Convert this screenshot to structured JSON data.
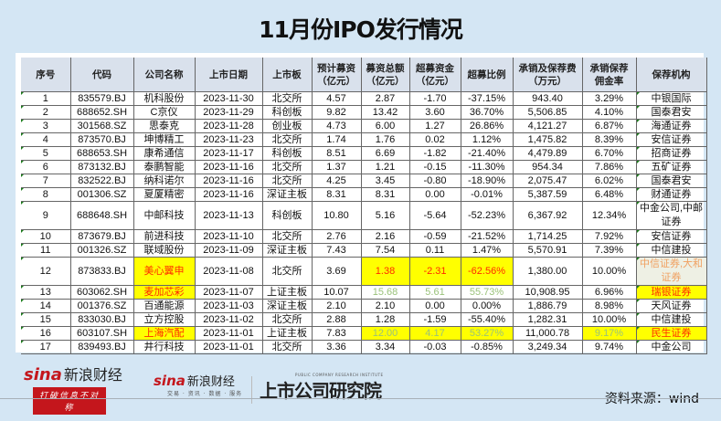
{
  "title": "11月份IPO发行情况",
  "table": {
    "headers": [
      "序号",
      "代码",
      "公司名称",
      "上市日期",
      "上市板",
      "预计募资（亿元）",
      "募资总额（亿元）",
      "超募资金（亿元）",
      "超募比例",
      "承销及保荐费（万元）",
      "承销保荐佣金率",
      "保荐机构"
    ],
    "header_lines": [
      [
        "序号"
      ],
      [
        "代码"
      ],
      [
        "公司名称"
      ],
      [
        "上市日期"
      ],
      [
        "上市板"
      ],
      [
        "预计募资",
        "（亿元）"
      ],
      [
        "募资总额",
        "（亿元）"
      ],
      [
        "超募资金",
        "（亿元）"
      ],
      [
        "超募比例"
      ],
      [
        "承销及保荐费",
        "（万元）"
      ],
      [
        "承销保荐",
        "佣金率"
      ],
      [
        "保荐机构"
      ]
    ],
    "rows": [
      [
        "1",
        "835579.BJ",
        "机科股份",
        "2023-11-30",
        "北交所",
        "4.57",
        "2.87",
        "-1.70",
        "-37.15%",
        "943.40",
        "3.29%",
        "中银国际"
      ],
      [
        "2",
        "688652.SH",
        "C京仪",
        "2023-11-29",
        "科创板",
        "9.82",
        "13.42",
        "3.60",
        "36.70%",
        "5,506.85",
        "4.10%",
        "国泰君安"
      ],
      [
        "3",
        "301568.SZ",
        "思泰克",
        "2023-11-28",
        "创业板",
        "4.73",
        "6.00",
        "1.27",
        "26.86%",
        "4,121.27",
        "6.87%",
        "海通证券"
      ],
      [
        "4",
        "873570.BJ",
        "坤博精工",
        "2023-11-23",
        "北交所",
        "1.74",
        "1.76",
        "0.02",
        "1.12%",
        "1,475.82",
        "8.39%",
        "安信证券"
      ],
      [
        "5",
        "688653.SH",
        "康希通信",
        "2023-11-17",
        "科创板",
        "8.51",
        "6.69",
        "-1.82",
        "-21.40%",
        "4,479.89",
        "6.70%",
        "招商证券"
      ],
      [
        "6",
        "873132.BJ",
        "泰鹏智能",
        "2023-11-16",
        "北交所",
        "1.37",
        "1.21",
        "-0.15",
        "-11.30%",
        "954.34",
        "7.86%",
        "五矿证券"
      ],
      [
        "7",
        "832522.BJ",
        "纳科诺尔",
        "2023-11-16",
        "北交所",
        "4.25",
        "3.45",
        "-0.80",
        "-18.90%",
        "2,075.47",
        "6.02%",
        "国泰君安"
      ],
      [
        "8",
        "001306.SZ",
        "夏厦精密",
        "2023-11-16",
        "深证主板",
        "8.31",
        "8.31",
        "0.00",
        "-0.01%",
        "5,387.59",
        "6.48%",
        "财通证券"
      ],
      [
        "9",
        "688648.SH",
        "中邮科技",
        "2023-11-13",
        "科创板",
        "10.80",
        "5.16",
        "-5.64",
        "-52.23%",
        "6,367.92",
        "12.34%",
        "中金公司,中邮证券"
      ],
      [
        "10",
        "873679.BJ",
        "前进科技",
        "2023-11-10",
        "北交所",
        "2.76",
        "2.16",
        "-0.59",
        "-21.52%",
        "1,714.25",
        "7.92%",
        "安信证券"
      ],
      [
        "11",
        "001326.SZ",
        "联域股份",
        "2023-11-09",
        "深证主板",
        "7.43",
        "7.54",
        "0.11",
        "1.47%",
        "5,570.91",
        "7.39%",
        "中信建投"
      ],
      [
        "12",
        "873833.BJ",
        "美心翼申",
        "2023-11-08",
        "北交所",
        "3.69",
        "1.38",
        "-2.31",
        "-62.56%",
        "1,380.00",
        "10.00%",
        "中信证券,大和证券"
      ],
      [
        "13",
        "603062.SH",
        "麦加芯彩",
        "2023-11-07",
        "上证主板",
        "10.07",
        "15.68",
        "5.61",
        "55.73%",
        "10,908.95",
        "6.96%",
        "瑞银证券"
      ],
      [
        "14",
        "001376.SZ",
        "百通能源",
        "2023-11-03",
        "深证主板",
        "2.10",
        "2.10",
        "0.00",
        "0.00%",
        "1,886.79",
        "8.98%",
        "天风证券"
      ],
      [
        "15",
        "833030.BJ",
        "立方控股",
        "2023-11-02",
        "北交所",
        "2.88",
        "1.28",
        "-1.59",
        "-55.40%",
        "1,282.31",
        "10.00%",
        "中信建投"
      ],
      [
        "16",
        "603107.SH",
        "上海汽配",
        "2023-11-01",
        "上证主板",
        "7.83",
        "12.00",
        "4.17",
        "53.27%",
        "11,000.78",
        "9.17%",
        "民生证券"
      ],
      [
        "17",
        "839493.BJ",
        "井行科技",
        "2023-11-01",
        "北交所",
        "3.36",
        "3.34",
        "-0.03",
        "-0.85%",
        "3,249.34",
        "9.74%",
        "中金公司"
      ]
    ],
    "highlights": {
      "row12": "company yellow/red; 募资总额, 超募资金, 超募比例 yellow/red; 保荐机构 beige/orange",
      "row13": "company yellow/red; 募资总额, 超募资金, 超募比例 green text; 保荐机构 yellow/red",
      "row16": "company yellow/red; 募资总额, 超募资金, 超募比例, 佣金率 yellow/green; 保荐机构 yellow/red"
    },
    "colors": {
      "highlight_bg": "#ffff00",
      "highlight_text": "#ff2a00",
      "green_text": "#9ac27a",
      "orange_text": "#f0a060",
      "header_bg": "#d9e1ec",
      "page_bg": "#d4e6f4"
    }
  },
  "footer": {
    "logo1_brand": "sina",
    "logo1_name": "新浪财经",
    "logo1_slogan": "打破信息不对称",
    "logo2_brand": "sina",
    "logo2_name": "新浪财经",
    "logo2_sub": "交易 · 资讯 · 数据 · 服务",
    "logo3_name": "上市公司研究院",
    "logo3_en": "PUBLIC COMPANY RESEARCH INSTITUTE",
    "source": "资料来源：wind"
  }
}
